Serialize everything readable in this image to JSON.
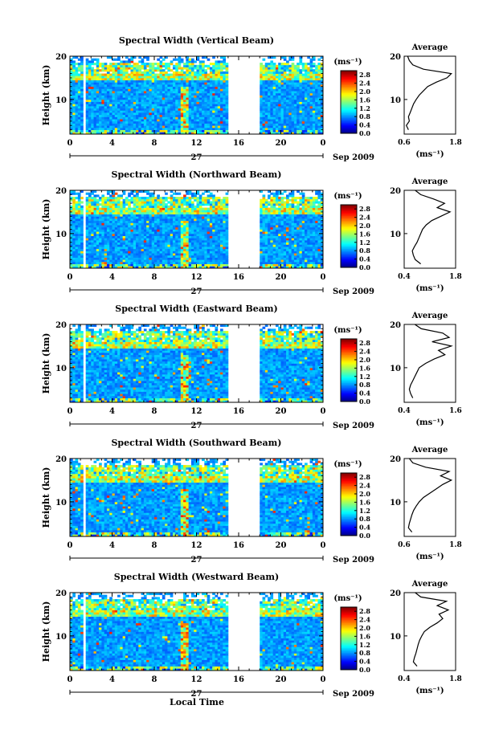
{
  "figure": {
    "x_axis_title": "Local Time",
    "date_label": "Sep 2009",
    "day_label": "27",
    "unit_label": "(ms⁻¹)",
    "avg_title": "Average",
    "avg_xlabel": "(ms⁻¹)",
    "y_axis_title": "Height (km)"
  },
  "chart_data": [
    {
      "type": "heatmap",
      "title": "Spectral Width (Vertical Beam)",
      "xlabel": "Local Time",
      "ylabel": "Height (km)",
      "x_ticks": [
        "0",
        "4",
        "8",
        "12",
        "16",
        "20",
        "0"
      ],
      "xlim": [
        0,
        24
      ],
      "y_ticks": [
        "10",
        "20"
      ],
      "ylim": [
        2,
        20
      ],
      "colorbar": {
        "label": "(ms⁻¹)",
        "ticks": [
          "2.8",
          "2.4",
          "2.0",
          "1.6",
          "1.2",
          "0.8",
          "0.4",
          "0.0"
        ],
        "range": [
          0.0,
          3.0
        ]
      },
      "data_gaps_hours": [
        [
          1.2,
          1.6
        ],
        [
          15.0,
          18.0
        ]
      ],
      "average_profile": {
        "title": "Average",
        "xlabel": "(ms⁻¹)",
        "x_ticks": [
          "0.6",
          "1.8"
        ],
        "xlim": [
          0.6,
          1.8
        ],
        "heights_km": [
          3,
          4,
          5,
          6,
          7,
          8,
          9,
          10,
          11,
          12,
          13,
          14,
          15,
          16,
          17,
          18,
          19,
          20
        ],
        "values": [
          0.7,
          0.65,
          0.72,
          0.7,
          0.74,
          0.78,
          0.82,
          0.88,
          0.95,
          1.05,
          1.15,
          1.35,
          1.6,
          1.7,
          1.05,
          0.8,
          0.72,
          0.68
        ]
      }
    },
    {
      "type": "heatmap",
      "title": "Spectral Width (Northward Beam)",
      "xlabel": "Local Time",
      "ylabel": "Height (km)",
      "x_ticks": [
        "0",
        "4",
        "8",
        "12",
        "16",
        "20",
        "0"
      ],
      "xlim": [
        0,
        24
      ],
      "y_ticks": [
        "10",
        "20"
      ],
      "ylim": [
        2,
        20
      ],
      "colorbar": {
        "label": "(ms⁻¹)",
        "ticks": [
          "2.8",
          "2.4",
          "2.0",
          "1.6",
          "1.2",
          "0.8",
          "0.4",
          "0.0"
        ],
        "range": [
          0.0,
          3.0
        ]
      },
      "data_gaps_hours": [
        [
          1.2,
          1.6
        ],
        [
          15.0,
          18.0
        ]
      ],
      "average_profile": {
        "title": "Average",
        "xlabel": "(ms⁻¹)",
        "x_ticks": [
          "0.4",
          "1.8"
        ],
        "xlim": [
          0.4,
          1.8
        ],
        "heights_km": [
          3,
          4,
          5,
          6,
          7,
          8,
          9,
          10,
          11,
          12,
          13,
          14,
          15,
          16,
          17,
          18,
          19,
          20
        ],
        "values": [
          0.85,
          0.7,
          0.65,
          0.62,
          0.68,
          0.75,
          0.8,
          0.85,
          0.9,
          1.0,
          1.15,
          1.4,
          1.65,
          1.3,
          1.5,
          1.2,
          0.85,
          0.7
        ]
      }
    },
    {
      "type": "heatmap",
      "title": "Spectral Width (Eastward Beam)",
      "xlabel": "Local Time",
      "ylabel": "Height (km)",
      "x_ticks": [
        "0",
        "4",
        "8",
        "12",
        "16",
        "20",
        "0"
      ],
      "xlim": [
        0,
        24
      ],
      "y_ticks": [
        "10",
        "20"
      ],
      "ylim": [
        2,
        20
      ],
      "colorbar": {
        "label": "(ms⁻¹)",
        "ticks": [
          "2.8",
          "2.4",
          "2.0",
          "1.6",
          "1.2",
          "0.8",
          "0.4",
          "0.0"
        ],
        "range": [
          0.0,
          3.0
        ]
      },
      "data_gaps_hours": [
        [
          1.2,
          1.6
        ],
        [
          15.0,
          18.0
        ]
      ],
      "average_profile": {
        "title": "Average",
        "xlabel": "(ms⁻¹)",
        "x_ticks": [
          "0.4",
          "1.6"
        ],
        "xlim": [
          0.4,
          1.6
        ],
        "heights_km": [
          3,
          4,
          5,
          6,
          7,
          8,
          9,
          10,
          11,
          12,
          13,
          14,
          15,
          16,
          17,
          18,
          19,
          20
        ],
        "values": [
          0.6,
          0.55,
          0.52,
          0.55,
          0.6,
          0.65,
          0.7,
          0.75,
          0.9,
          1.1,
          1.35,
          1.2,
          1.5,
          1.05,
          1.45,
          1.3,
          0.8,
          0.65
        ]
      }
    },
    {
      "type": "heatmap",
      "title": "Spectral Width (Southward Beam)",
      "xlabel": "Local Time",
      "ylabel": "Height (km)",
      "x_ticks": [
        "0",
        "4",
        "8",
        "12",
        "16",
        "20",
        "0"
      ],
      "xlim": [
        0,
        24
      ],
      "y_ticks": [
        "10",
        "20"
      ],
      "ylim": [
        2,
        20
      ],
      "colorbar": {
        "label": "(ms⁻¹)",
        "ticks": [
          "2.8",
          "2.4",
          "2.0",
          "1.6",
          "1.2",
          "0.8",
          "0.4",
          "0.0"
        ],
        "range": [
          0.0,
          3.0
        ]
      },
      "data_gaps_hours": [
        [
          1.2,
          1.6
        ],
        [
          15.0,
          18.0
        ]
      ],
      "average_profile": {
        "title": "Average",
        "xlabel": "(ms⁻¹)",
        "x_ticks": [
          "0.6",
          "1.8"
        ],
        "xlim": [
          0.6,
          1.8
        ],
        "heights_km": [
          3,
          4,
          5,
          6,
          7,
          8,
          9,
          10,
          11,
          12,
          13,
          14,
          15,
          16,
          17,
          18,
          19,
          20
        ],
        "values": [
          0.78,
          0.7,
          0.72,
          0.75,
          0.78,
          0.82,
          0.88,
          0.95,
          1.05,
          1.2,
          1.35,
          1.5,
          1.7,
          1.45,
          1.65,
          1.1,
          0.8,
          0.72
        ]
      }
    },
    {
      "type": "heatmap",
      "title": "Spectral Width (Westward Beam)",
      "xlabel": "Local Time",
      "ylabel": "Height (km)",
      "x_ticks": [
        "0",
        "4",
        "8",
        "12",
        "16",
        "20",
        "0"
      ],
      "xlim": [
        0,
        24
      ],
      "y_ticks": [
        "10",
        "20"
      ],
      "ylim": [
        2,
        20
      ],
      "colorbar": {
        "label": "(ms⁻¹)",
        "ticks": [
          "2.8",
          "2.4",
          "2.0",
          "1.6",
          "1.2",
          "0.8",
          "0.4",
          "0.0"
        ],
        "range": [
          0.0,
          3.0
        ]
      },
      "data_gaps_hours": [
        [
          1.2,
          1.6
        ],
        [
          15.0,
          18.0
        ]
      ],
      "average_profile": {
        "title": "Average",
        "xlabel": "(ms⁻¹)",
        "x_ticks": [
          "0.4",
          "1.8"
        ],
        "xlim": [
          0.4,
          1.8
        ],
        "heights_km": [
          3,
          4,
          5,
          6,
          7,
          8,
          9,
          10,
          11,
          12,
          13,
          14,
          15,
          16,
          17,
          18,
          19,
          20
        ],
        "values": [
          0.75,
          0.65,
          0.68,
          0.72,
          0.75,
          0.78,
          0.82,
          0.88,
          0.95,
          1.1,
          1.3,
          1.45,
          1.35,
          1.6,
          1.3,
          1.55,
          0.85,
          0.7
        ]
      }
    }
  ]
}
